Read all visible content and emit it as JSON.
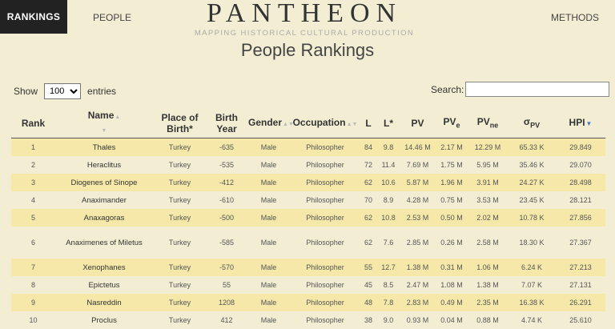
{
  "nav": {
    "rankings": "RANKINGS",
    "people": "PEOPLE",
    "methods": "METHODS"
  },
  "brand": {
    "title": "PANTHEON",
    "subtitle": "MAPPING HISTORICAL CULTURAL PRODUCTION"
  },
  "page_title": "People Rankings",
  "controls": {
    "show_label": "Show",
    "entries_value": "100",
    "entries_label": "entries",
    "search_label": "Search:",
    "search_value": ""
  },
  "table": {
    "headers": {
      "rank": "Rank",
      "name": "Name",
      "place_of_birth": "Place of Birth*",
      "birth_year": "Birth Year",
      "gender": "Gender",
      "occupation": "Occupation",
      "l": "L",
      "l_star": "L*",
      "pv": "PV",
      "pve_base": "PV",
      "pve_sub": "e",
      "pvne_base": "PV",
      "pvne_sub": "ne",
      "sigma_base": "σ",
      "sigma_sub": "PV",
      "hpi": "HPI"
    },
    "rows": [
      {
        "rank": "1",
        "name": "Thales",
        "place": "Turkey",
        "birth_year": "-635",
        "gender": "Male",
        "occupation": "Philosopher",
        "l": "84",
        "l_star": "9.8",
        "pv": "14.46 M",
        "pve": "2.17 M",
        "pvne": "12.29 M",
        "sigma": "65.33 K",
        "hpi": "29.849"
      },
      {
        "rank": "2",
        "name": "Heraclitus",
        "place": "Turkey",
        "birth_year": "-535",
        "gender": "Male",
        "occupation": "Philosopher",
        "l": "72",
        "l_star": "11.4",
        "pv": "7.69 M",
        "pve": "1.75 M",
        "pvne": "5.95 M",
        "sigma": "35.46 K",
        "hpi": "29.070"
      },
      {
        "rank": "3",
        "name": "Diogenes of Sinope",
        "place": "Turkey",
        "birth_year": "-412",
        "gender": "Male",
        "occupation": "Philosopher",
        "l": "62",
        "l_star": "10.6",
        "pv": "5.87 M",
        "pve": "1.96 M",
        "pvne": "3.91 M",
        "sigma": "24.27 K",
        "hpi": "28.498"
      },
      {
        "rank": "4",
        "name": "Anaximander",
        "place": "Turkey",
        "birth_year": "-610",
        "gender": "Male",
        "occupation": "Philosopher",
        "l": "70",
        "l_star": "8.9",
        "pv": "4.28 M",
        "pve": "0.75 M",
        "pvne": "3.53 M",
        "sigma": "23.45 K",
        "hpi": "28.121"
      },
      {
        "rank": "5",
        "name": "Anaxagoras",
        "place": "Turkey",
        "birth_year": "-500",
        "gender": "Male",
        "occupation": "Philosopher",
        "l": "62",
        "l_star": "10.8",
        "pv": "2.53 M",
        "pve": "0.50 M",
        "pvne": "2.02 M",
        "sigma": "10.78 K",
        "hpi": "27.856"
      },
      {
        "rank": "6",
        "name": "Anaximenes of Miletus",
        "place": "Turkey",
        "birth_year": "-585",
        "gender": "Male",
        "occupation": "Philosopher",
        "l": "62",
        "l_star": "7.6",
        "pv": "2.85 M",
        "pve": "0.26 M",
        "pvne": "2.58 M",
        "sigma": "18.30 K",
        "hpi": "27.367"
      },
      {
        "rank": "7",
        "name": "Xenophanes",
        "place": "Turkey",
        "birth_year": "-570",
        "gender": "Male",
        "occupation": "Philosopher",
        "l": "55",
        "l_star": "12.7",
        "pv": "1.38 M",
        "pve": "0.31 M",
        "pvne": "1.06 M",
        "sigma": "6.24 K",
        "hpi": "27.213"
      },
      {
        "rank": "8",
        "name": "Epictetus",
        "place": "Turkey",
        "birth_year": "55",
        "gender": "Male",
        "occupation": "Philosopher",
        "l": "45",
        "l_star": "8.5",
        "pv": "2.47 M",
        "pve": "1.08 M",
        "pvne": "1.38 M",
        "sigma": "7.07 K",
        "hpi": "27.131"
      },
      {
        "rank": "9",
        "name": "Nasreddin",
        "place": "Turkey",
        "birth_year": "1208",
        "gender": "Male",
        "occupation": "Philosopher",
        "l": "48",
        "l_star": "7.8",
        "pv": "2.83 M",
        "pve": "0.49 M",
        "pvne": "2.35 M",
        "sigma": "16.38 K",
        "hpi": "26.291"
      },
      {
        "rank": "10",
        "name": "Proclus",
        "place": "Turkey",
        "birth_year": "412",
        "gender": "Male",
        "occupation": "Philosopher",
        "l": "38",
        "l_star": "9.0",
        "pv": "0.93 M",
        "pve": "0.04 M",
        "pvne": "0.88 M",
        "sigma": "4.74 K",
        "hpi": "25.610"
      }
    ]
  },
  "colors": {
    "background": "#f3eed3",
    "row_highlight": "#f5e8a8",
    "nav_active_bg": "#222222",
    "sort_active": "#4a78c8"
  }
}
